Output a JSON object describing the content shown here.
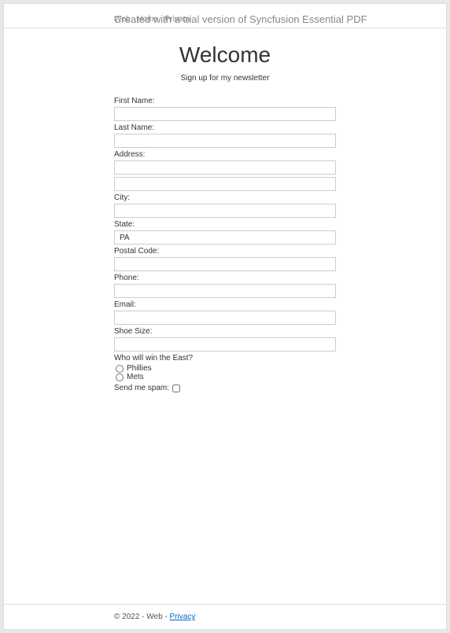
{
  "header": {
    "nav_web": "Web",
    "nav_home": "Home",
    "nav_privacy": "Privacy",
    "watermark": "Created with a trial version of Syncfusion Essential PDF"
  },
  "main": {
    "title": "Welcome",
    "subtitle": "Sign up for my newsletter"
  },
  "form": {
    "first_name_label": "First Name:",
    "first_name_value": "",
    "last_name_label": "Last Name:",
    "last_name_value": "",
    "address_label": "Address:",
    "address_value1": "",
    "address_value2": "",
    "city_label": "City:",
    "city_value": "",
    "state_label": "State:",
    "state_value": "PA",
    "postal_label": "Postal Code:",
    "postal_value": "",
    "phone_label": "Phone:",
    "phone_value": "",
    "email_label": "Email:",
    "email_value": "",
    "shoe_label": "Shoe Size:",
    "shoe_value": "",
    "east_label": "Who will win the East?",
    "east_opt1": "Phillies",
    "east_opt2": "Mets",
    "spam_label": "Send me spam:"
  },
  "footer": {
    "copyright": "© 2022 - Web - ",
    "privacy_link": "Privacy"
  }
}
